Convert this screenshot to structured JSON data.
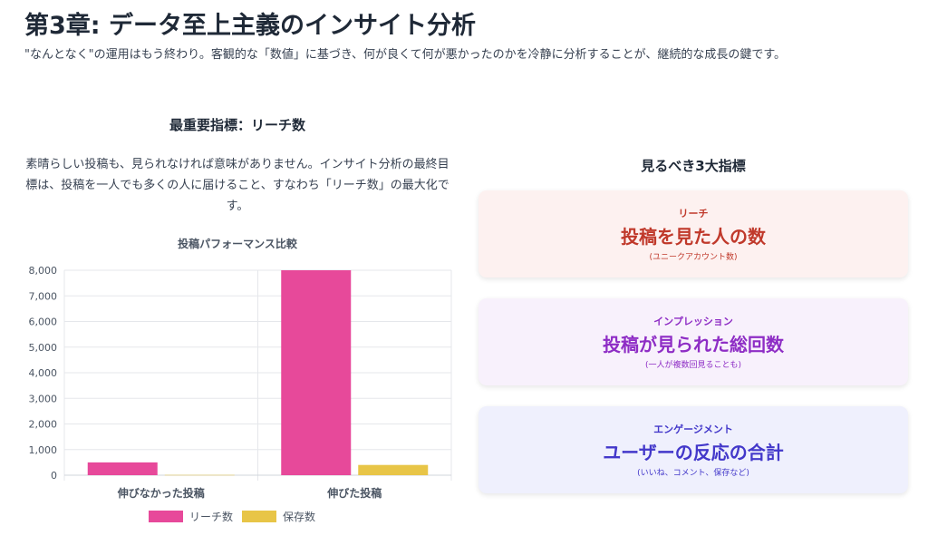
{
  "page": {
    "title": "第3章: データ至上主義のインサイト分析",
    "description": "\"なんとなく\"の運用はもう終わり。客観的な「数値」に基づき、何が良くて何が悪かったのかを冷静に分析することが、継続的な成長の鍵です。"
  },
  "left": {
    "heading": "最重要指標：リーチ数",
    "text": "素晴らしい投稿も、見られなければ意味がありません。インサイト分析の最終目標は、投稿を一人でも多くの人に届けること、すなわち「リーチ数」の最大化です。"
  },
  "chart_data": {
    "type": "bar",
    "title": "投稿パフォーマンス比較",
    "categories": [
      "伸びなかった投稿",
      "伸びた投稿"
    ],
    "series": [
      {
        "name": "リーチ数",
        "color": "#e7499a",
        "values": [
          500,
          8000
        ]
      },
      {
        "name": "保存数",
        "color": "#e8c547",
        "values": [
          10,
          400
        ]
      }
    ],
    "ylim": [
      0,
      8000
    ],
    "yticks": [
      0,
      1000,
      2000,
      3000,
      4000,
      5000,
      6000,
      7000,
      8000
    ],
    "ytick_labels": [
      "0",
      "1,000",
      "2,000",
      "3,000",
      "4,000",
      "5,000",
      "6,000",
      "7,000",
      "8,000"
    ],
    "grid": true,
    "legend": "bottom",
    "xlabel": "",
    "ylabel": ""
  },
  "right": {
    "heading": "見るべき3大指標",
    "cards": [
      {
        "label": "リーチ",
        "main": "投稿を見た人の数",
        "note": "(ユニークアカウント数)",
        "bg": "#fdf1f0",
        "color": "#c0392b"
      },
      {
        "label": "インプレッション",
        "main": "投稿が見られた総回数",
        "note": "(一人が複数回見ることも)",
        "bg": "#f8f1fc",
        "color": "#8e2dc5"
      },
      {
        "label": "エンゲージメント",
        "main": "ユーザーの反応の合計",
        "note": "(いいね、コメント、保存など)",
        "bg": "#eff0fd",
        "color": "#4338ca"
      }
    ]
  }
}
